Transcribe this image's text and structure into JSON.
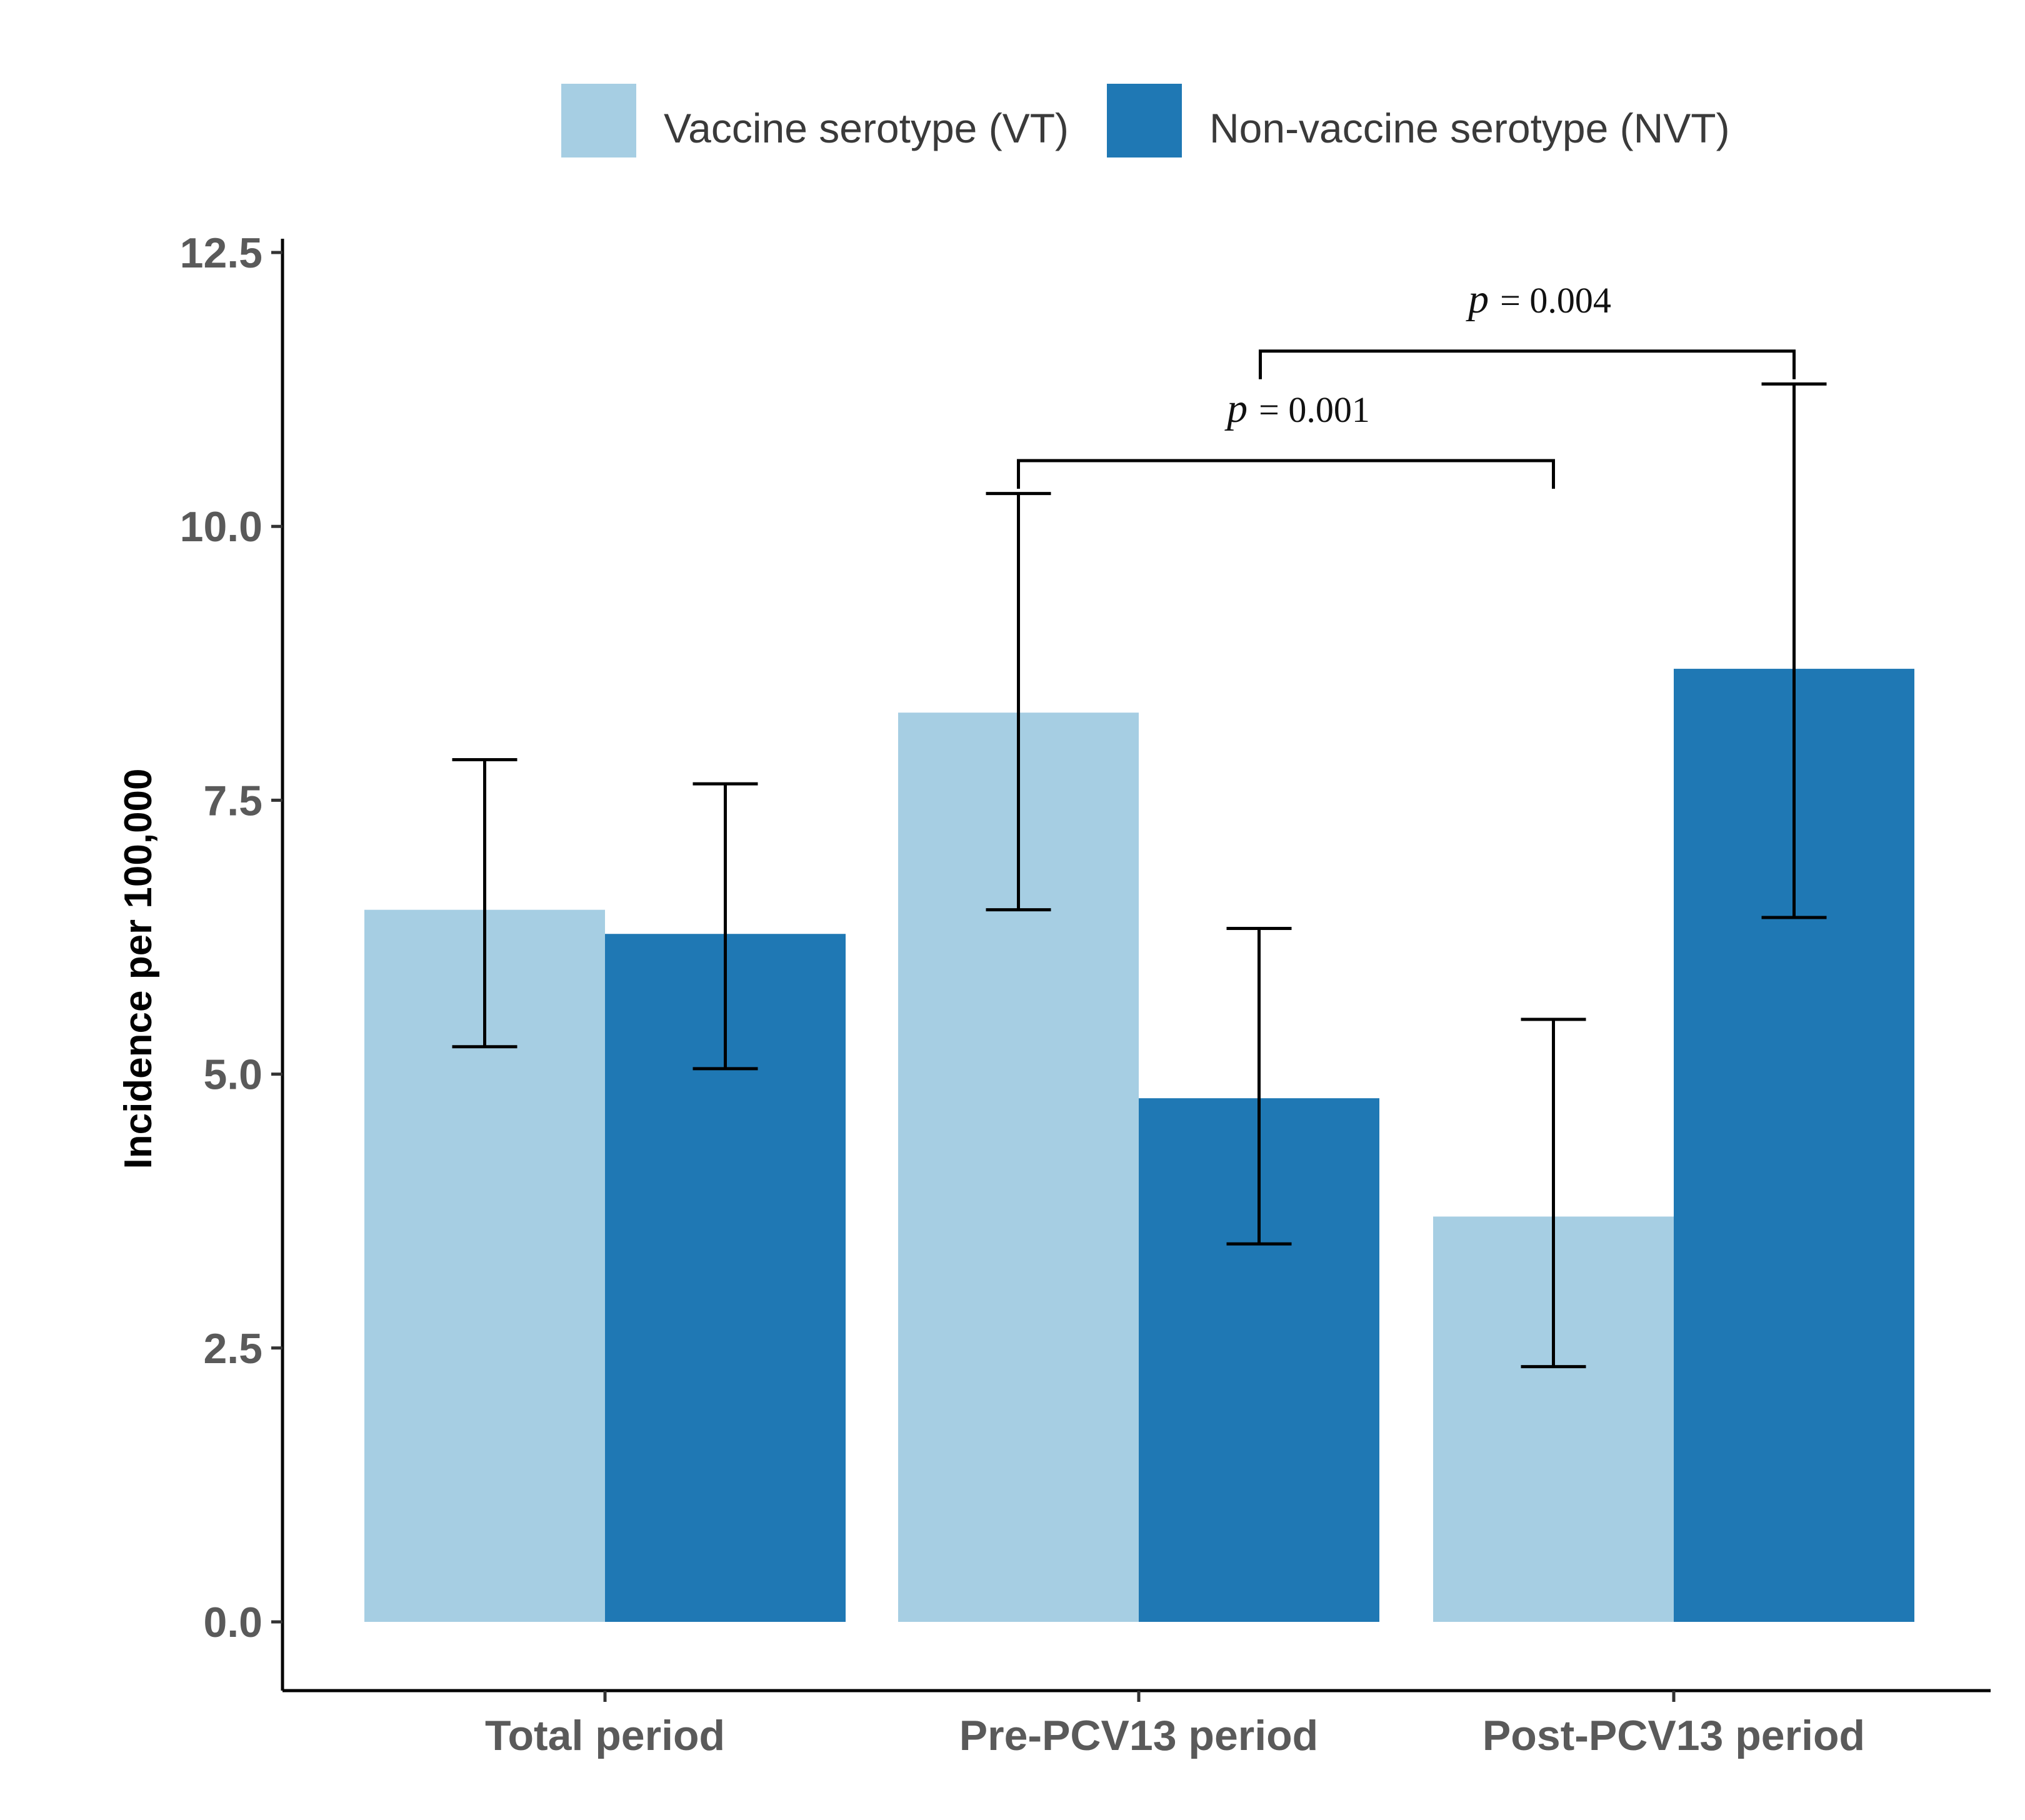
{
  "chart_data": {
    "type": "bar",
    "title": "",
    "xlabel": "",
    "ylabel": "Incidence per 100,000",
    "categories": [
      "Total period",
      "Pre-PCV13 period",
      "Post-PCV13 period"
    ],
    "ylim": [
      -0.6,
      12.5
    ],
    "yticks": [
      "0.0",
      "2.5",
      "5.0",
      "7.5",
      "10.0",
      "12.5"
    ],
    "grid": false,
    "legend_position": "top",
    "series": [
      {
        "name": "Vaccine serotype (VT)",
        "color": "#a6cee3",
        "values": [
          6.5,
          8.3,
          3.7
        ],
        "ci_low": [
          5.25,
          6.5,
          2.33
        ],
        "ci_high": [
          7.87,
          10.3,
          5.5
        ]
      },
      {
        "name": "Non-vaccine serotype (NVT)",
        "color": "#1f78b4",
        "values": [
          6.28,
          4.78,
          8.7
        ],
        "ci_low": [
          5.05,
          3.45,
          6.43
        ],
        "ci_high": [
          7.65,
          6.33,
          11.3
        ]
      }
    ],
    "annotations": [
      {
        "label": "p",
        "value": "= 0.001",
        "from": "Pre-PCV13 period VT",
        "to": "Post-PCV13 period VT",
        "level": 10.6
      },
      {
        "label": "p",
        "value": "= 0.004",
        "from": "Pre-PCV13 period NVT",
        "to": "Post-PCV13 period NVT",
        "level": 11.6
      }
    ]
  }
}
